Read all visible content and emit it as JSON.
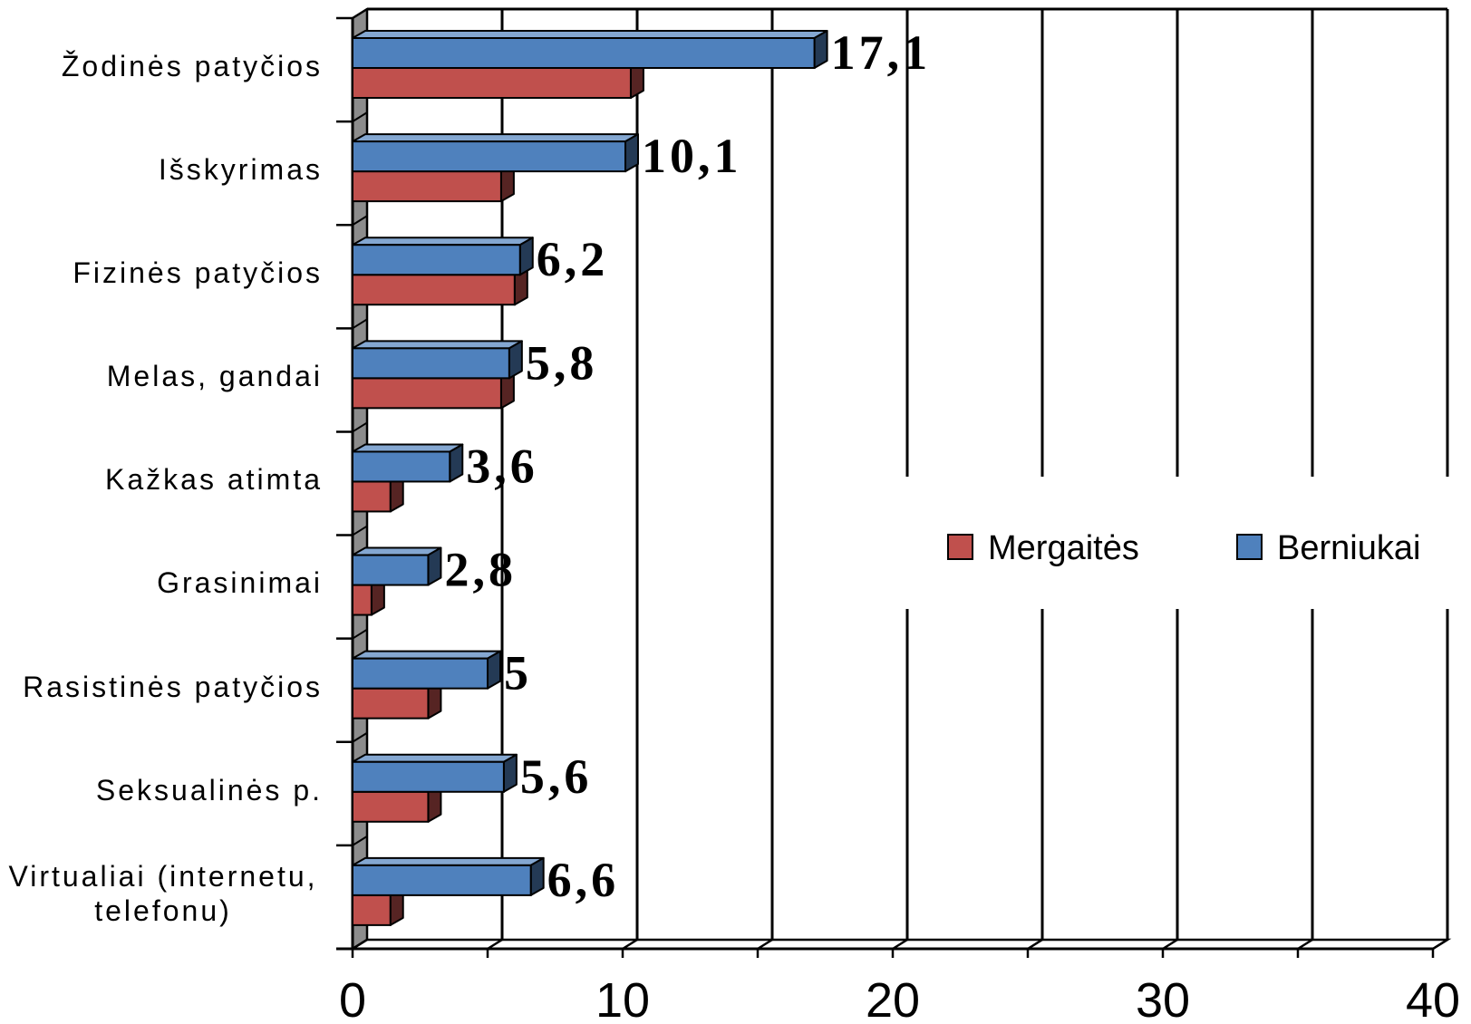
{
  "chart_data": {
    "type": "bar",
    "orientation": "horizontal",
    "style": "3d-clustered",
    "categories": [
      "Žodinės patyčios",
      "Išskyrimas",
      "Fizinės patyčios",
      "Melas, gandai",
      "Kažkas atimta",
      "Grasinimai",
      "Rasistinės patyčios",
      "Seksualinės p.",
      "Virtualiai (internetu, telefonu)"
    ],
    "series": [
      {
        "name": "Mergaitės",
        "color": "#c0504d",
        "values": [
          10.3,
          5.5,
          6.0,
          5.5,
          1.4,
          0.7,
          2.8,
          2.8,
          1.4
        ]
      },
      {
        "name": "Berniukai",
        "color": "#4f81bd",
        "values": [
          17.1,
          10.1,
          6.2,
          5.8,
          3.6,
          2.8,
          5,
          5.6,
          6.6
        ],
        "data_labels": [
          "17,1",
          "10,1",
          "6,2",
          "5,8",
          "3,6",
          "2,8",
          "5",
          "5,6",
          "6,6"
        ]
      }
    ],
    "xlim": [
      0,
      40
    ],
    "xticks": [
      0,
      10,
      20,
      30,
      40
    ],
    "grid": true,
    "grid_step": 5,
    "wall_color": "#8c8c8c",
    "legend": {
      "position": "right-middle"
    }
  }
}
